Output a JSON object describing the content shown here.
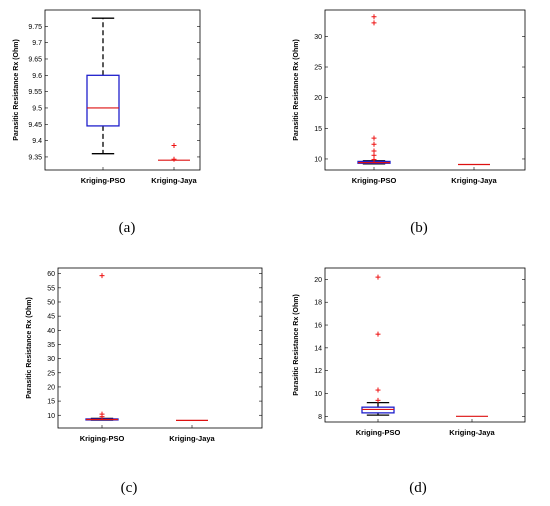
{
  "chart_data": [
    {
      "type": "box",
      "panel_label": "(a)",
      "ylabel": "Parasitic Resistance Rx (Ohm)",
      "categories": [
        "Kriging-PSO",
        "Kriging-Jaya"
      ],
      "ylim": [
        9.31,
        9.8
      ],
      "yticks": [
        "9.35",
        "9.4",
        "9.45",
        "9.5",
        "9.55",
        "9.6",
        "9.65",
        "9.7",
        "9.75"
      ],
      "boxes": [
        {
          "name": "Kriging-PSO",
          "whisker_low": 9.36,
          "q1": 9.445,
          "median": 9.5,
          "q3": 9.6,
          "whisker_high": 9.775,
          "outliers": []
        },
        {
          "name": "Kriging-Jaya",
          "whisker_low": 9.34,
          "q1": 9.34,
          "median": 9.34,
          "q3": 9.34,
          "whisker_high": 9.34,
          "outliers": [
            9.385,
            9.343
          ]
        }
      ]
    },
    {
      "type": "box",
      "panel_label": "(b)",
      "ylabel": "Parasitic Resistance Rx (Ohm)",
      "categories": [
        "Kriging-PSO",
        "Kriging-Jaya"
      ],
      "ylim": [
        8.2,
        34.3
      ],
      "yticks": [
        "10",
        "15",
        "20",
        "25",
        "30"
      ],
      "boxes": [
        {
          "name": "Kriging-PSO",
          "whisker_low": 9.2,
          "q1": 9.3,
          "median": 9.4,
          "q3": 9.6,
          "whisker_high": 9.7,
          "outliers": [
            9.9,
            10.6,
            11.3,
            12.4,
            13.4,
            32.2,
            33.2
          ]
        },
        {
          "name": "Kriging-Jaya",
          "whisker_low": 9.1,
          "q1": 9.1,
          "median": 9.1,
          "q3": 9.1,
          "whisker_high": 9.1,
          "outliers": []
        }
      ]
    },
    {
      "type": "box",
      "panel_label": "(c)",
      "ylabel": "Parasitic Resistance Rx (Ohm)",
      "categories": [
        "Kriging-PSO",
        "Kriging-Jaya"
      ],
      "ylim": [
        5.5,
        62
      ],
      "yticks": [
        "10",
        "15",
        "20",
        "25",
        "30",
        "35",
        "40",
        "45",
        "50",
        "55",
        "60"
      ],
      "boxes": [
        {
          "name": "Kriging-PSO",
          "whisker_low": 8.3,
          "q1": 8.4,
          "median": 8.5,
          "q3": 8.7,
          "whisker_high": 8.9,
          "outliers": [
            9.5,
            10.4,
            59.3
          ]
        },
        {
          "name": "Kriging-Jaya",
          "whisker_low": 8.2,
          "q1": 8.2,
          "median": 8.2,
          "q3": 8.2,
          "whisker_high": 8.2,
          "outliers": []
        }
      ]
    },
    {
      "type": "box",
      "panel_label": "(d)",
      "ylabel": "Parasitic Resistance Rx (Ohm)",
      "categories": [
        "Kriging-PSO",
        "Kriging-Jaya"
      ],
      "ylim": [
        7.5,
        21
      ],
      "yticks": [
        "8",
        "10",
        "12",
        "14",
        "16",
        "18",
        "20"
      ],
      "boxes": [
        {
          "name": "Kriging-PSO",
          "whisker_low": 8.1,
          "q1": 8.3,
          "median": 8.6,
          "q3": 8.8,
          "whisker_high": 9.2,
          "outliers": [
            9.4,
            10.3,
            15.2,
            20.2
          ]
        },
        {
          "name": "Kriging-Jaya",
          "whisker_low": 8.0,
          "q1": 8.0,
          "median": 8.0,
          "q3": 8.0,
          "whisker_high": 8.0,
          "outliers": []
        }
      ]
    }
  ],
  "colors": {
    "box": "#1f1fcc",
    "median": "#dd1111",
    "whisker": "#000000",
    "outlier": "#ee1111"
  }
}
